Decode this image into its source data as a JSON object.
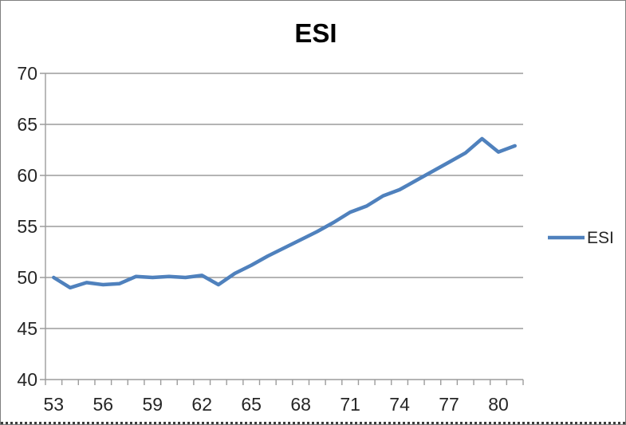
{
  "chart_data": {
    "type": "line",
    "title": "ESI",
    "legend": {
      "label": "ESI",
      "position": "right"
    },
    "categories": [
      53,
      54,
      55,
      56,
      57,
      58,
      59,
      60,
      61,
      62,
      63,
      64,
      65,
      66,
      67,
      68,
      69,
      70,
      71,
      72,
      73,
      74,
      75,
      76,
      77,
      78,
      79,
      80,
      81
    ],
    "series": [
      {
        "name": "ESI",
        "values": [
          50.0,
          49.0,
          49.5,
          49.3,
          49.4,
          50.1,
          50.0,
          50.1,
          50.0,
          50.2,
          49.3,
          50.4,
          51.2,
          52.1,
          52.9,
          53.7,
          54.5,
          55.4,
          56.4,
          57.0,
          58.0,
          58.6,
          59.5,
          60.4,
          61.3,
          62.2,
          63.6,
          62.3,
          62.9
        ]
      }
    ],
    "xlabel": "",
    "ylabel": "",
    "ylim": [
      40,
      70
    ],
    "ytick_step": 5,
    "ytick_labels": [
      "40",
      "45",
      "50",
      "55",
      "60",
      "65",
      "70"
    ],
    "xtick_labels": [
      "53",
      "56",
      "59",
      "62",
      "65",
      "68",
      "71",
      "74",
      "77",
      "80"
    ],
    "grid": true,
    "colors": {
      "line": "#4F81BD",
      "grid": "#9C9C9C",
      "axis": "#9C9C9C",
      "text": "#262626",
      "title": "#000000",
      "background": "#FFFFFF",
      "border": "#7F7F7F"
    }
  }
}
